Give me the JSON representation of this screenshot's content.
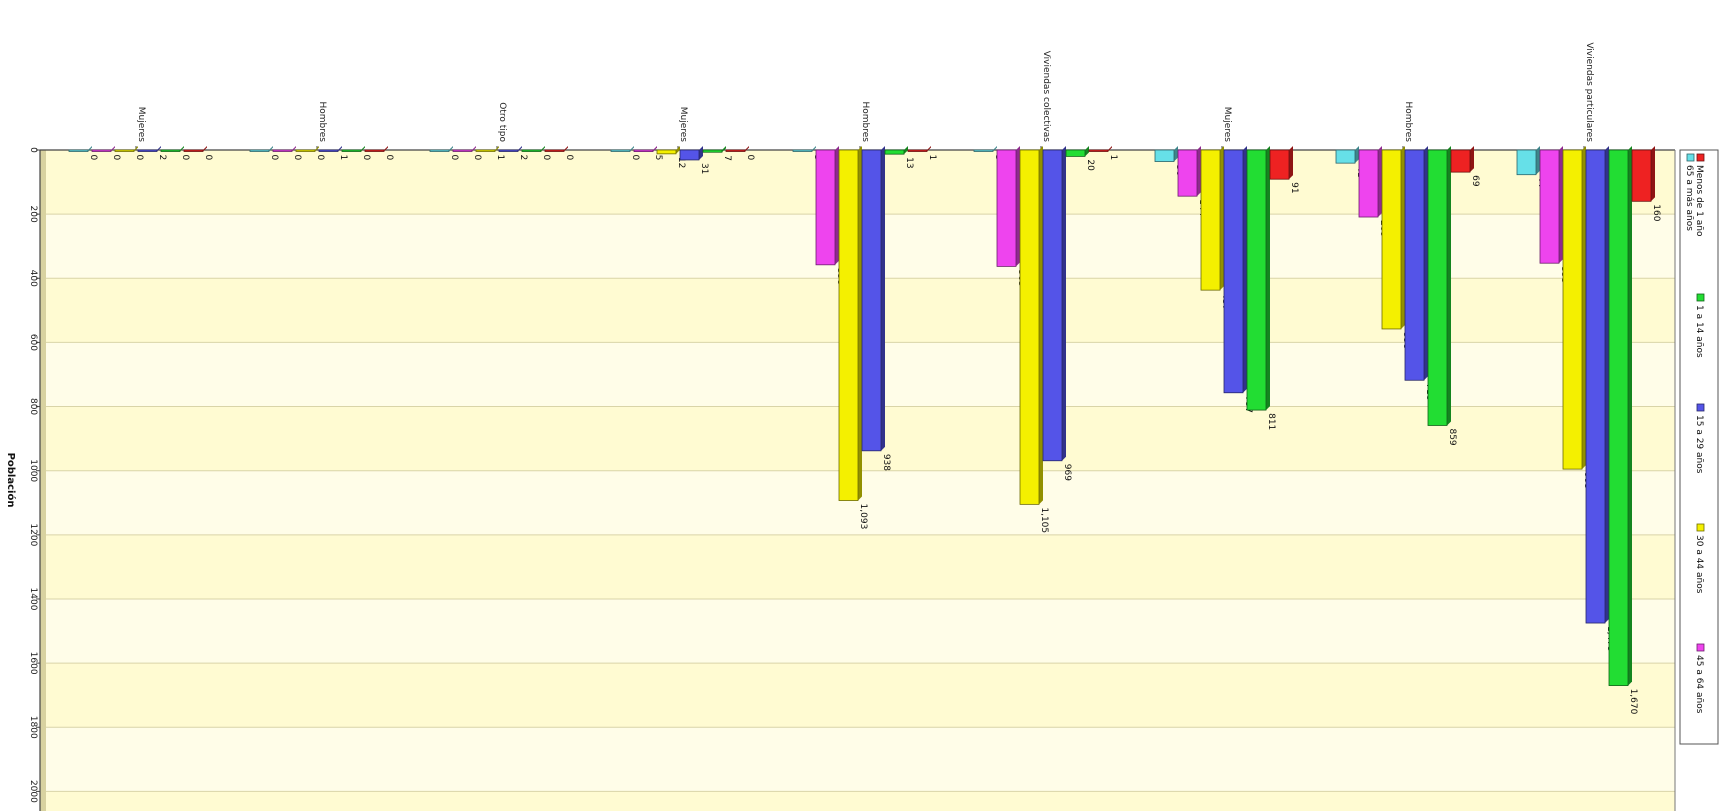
{
  "chart_data": {
    "type": "bar",
    "orientation": "downward bars, rotated chart",
    "ylabel": "Población",
    "ylim": [
      0,
      2100
    ],
    "ytick_values": [
      0,
      200,
      400,
      600,
      800,
      1000,
      1200,
      1400,
      1600,
      1800,
      2000
    ],
    "ytick_labels": [
      "0",
      "200",
      "400",
      "600",
      "800",
      "1000",
      "1200",
      "1400",
      "1600",
      "1800",
      "2000"
    ],
    "grid": true,
    "legend_position": "right",
    "categories": [
      "Mujeres",
      "Hombres",
      "Otro tipo",
      "Mujeres",
      "Hombres",
      "Viviendas colectivas",
      "Mujeres",
      "Hombres",
      "Viviendas particulares"
    ],
    "series": [
      {
        "name": "65 a más años",
        "color": "#66e0e8",
        "values": [
          0,
          0,
          0,
          0,
          3,
          3,
          36,
          41,
          77
        ]
      },
      {
        "name": "45 a 64 años",
        "color": "#ee44ee",
        "values": [
          0,
          0,
          0,
          5,
          358,
          363,
          144,
          209,
          353
        ]
      },
      {
        "name": "30 a 44 años",
        "color": "#f4f000",
        "values": [
          0,
          0,
          1,
          12,
          1093,
          1105,
          437,
          558,
          995
        ]
      },
      {
        "name": "15 a 29 años",
        "color": "#5454e8",
        "values": [
          2,
          1,
          2,
          31,
          938,
          969,
          757,
          718,
          1475
        ]
      },
      {
        "name": "1 a 14 años",
        "color": "#22dd33",
        "values": [
          0,
          0,
          0,
          7,
          13,
          20,
          811,
          859,
          1670
        ]
      },
      {
        "name": "Menos de 1 año",
        "color": "#ee2222",
        "values": [
          0,
          0,
          0,
          0,
          1,
          1,
          91,
          69,
          160
        ]
      }
    ],
    "data_labels": [
      [
        "0",
        "0",
        "0",
        "0",
        "3",
        "3",
        "36",
        "41",
        "77"
      ],
      [
        "0",
        "0",
        "0",
        "5",
        "358",
        "363",
        "144",
        "209",
        "353"
      ],
      [
        "0",
        "0",
        "1",
        "12",
        "1,093",
        "1,105",
        "437",
        "558",
        "995"
      ],
      [
        "2",
        "1",
        "2",
        "31",
        "938",
        "969",
        "757",
        "718",
        "1,475"
      ],
      [
        "0",
        "0",
        "0",
        "7",
        "13",
        "20",
        "811",
        "859",
        "1,670"
      ],
      [
        "0",
        "0",
        "0",
        "0",
        "1",
        "1",
        "91",
        "69",
        "160"
      ]
    ]
  }
}
